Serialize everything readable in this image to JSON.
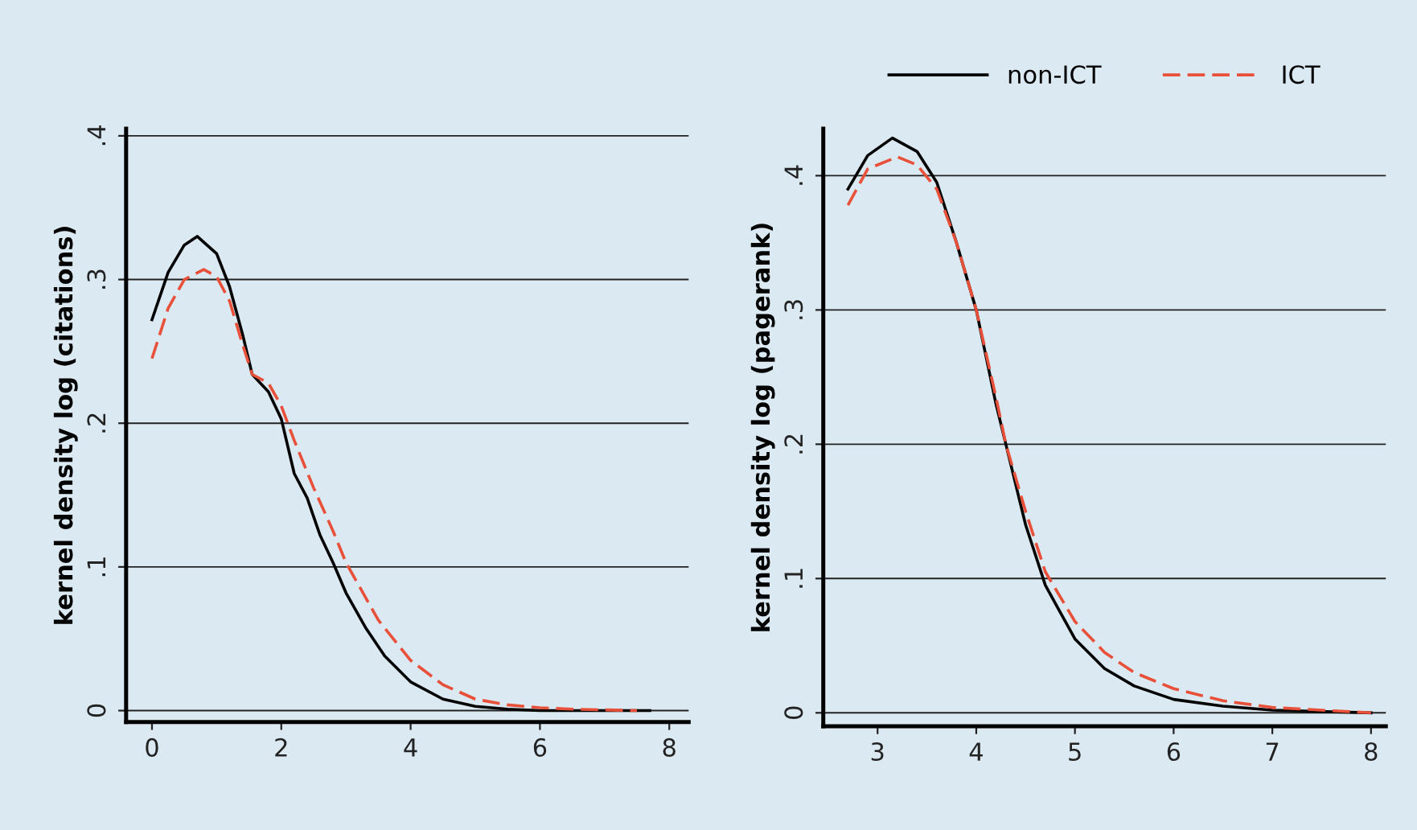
{
  "chart_data": [
    {
      "type": "line",
      "ylabel": "kernel density log (citations)",
      "xlim": [
        -0.4,
        8.3
      ],
      "ylim": [
        -0.008,
        0.405
      ],
      "xticks": [
        0,
        2,
        4,
        6,
        8
      ],
      "yticks": [
        {
          "value": 0,
          "label": "0"
        },
        {
          "value": 0.1,
          "label": ".1"
        },
        {
          "value": 0.2,
          "label": ".2"
        },
        {
          "value": 0.3,
          "label": ".3"
        },
        {
          "value": 0.4,
          "label": ".4"
        }
      ],
      "grid": "y",
      "legend": false,
      "series": [
        {
          "color": "#000000",
          "line_style": "solid",
          "x": [
            0,
            0.25,
            0.5,
            0.7,
            1.0,
            1.2,
            1.4,
            1.55,
            1.8,
            2.0,
            2.2,
            2.4,
            2.6,
            2.8,
            3.0,
            3.3,
            3.6,
            4.0,
            4.5,
            5.0,
            5.5,
            6.0,
            7.7
          ],
          "values": [
            0.272,
            0.305,
            0.324,
            0.33,
            0.318,
            0.295,
            0.262,
            0.234,
            0.222,
            0.203,
            0.165,
            0.148,
            0.122,
            0.103,
            0.082,
            0.058,
            0.038,
            0.02,
            0.008,
            0.003,
            0.001,
            0,
            0
          ]
        },
        {
          "color": "#e8503a",
          "line_style": "dashed",
          "x": [
            0,
            0.25,
            0.5,
            0.8,
            1.0,
            1.2,
            1.4,
            1.55,
            1.8,
            2.0,
            2.2,
            2.5,
            2.8,
            3.0,
            3.5,
            4.0,
            4.5,
            5.0,
            5.5,
            6.0,
            6.5,
            7.5
          ],
          "values": [
            0.245,
            0.28,
            0.3,
            0.307,
            0.302,
            0.285,
            0.255,
            0.234,
            0.228,
            0.212,
            0.188,
            0.155,
            0.125,
            0.103,
            0.063,
            0.035,
            0.018,
            0.008,
            0.004,
            0.002,
            0.001,
            0
          ]
        }
      ]
    },
    {
      "type": "line",
      "ylabel": "kernel density log (pagerank)",
      "xlim": [
        2.45,
        8.15
      ],
      "ylim": [
        -0.01,
        0.435
      ],
      "xticks": [
        3,
        4,
        5,
        6,
        7,
        8
      ],
      "yticks": [
        {
          "value": 0,
          "label": "0"
        },
        {
          "value": 0.1,
          "label": ".1"
        },
        {
          "value": 0.2,
          "label": ".2"
        },
        {
          "value": 0.3,
          "label": ".3"
        },
        {
          "value": 0.4,
          "label": ".4"
        }
      ],
      "grid": "y",
      "legend": "top",
      "series": [
        {
          "name": "non-ICT",
          "color": "#000000",
          "line_style": "solid",
          "x": [
            2.7,
            2.9,
            3.15,
            3.4,
            3.6,
            3.8,
            4.0,
            4.2,
            4.3,
            4.5,
            4.7,
            5.0,
            5.3,
            5.6,
            6.0,
            6.5,
            7.0,
            8.0
          ],
          "values": [
            0.39,
            0.415,
            0.428,
            0.418,
            0.395,
            0.35,
            0.3,
            0.23,
            0.2,
            0.14,
            0.095,
            0.055,
            0.033,
            0.02,
            0.01,
            0.005,
            0.002,
            0
          ]
        },
        {
          "name": "ICT",
          "color": "#e8503a",
          "line_style": "dashed",
          "x": [
            2.7,
            2.9,
            3.2,
            3.4,
            3.6,
            3.8,
            4.0,
            4.2,
            4.3,
            4.5,
            4.7,
            5.0,
            5.3,
            5.6,
            6.0,
            6.5,
            7.0,
            8.0
          ],
          "values": [
            0.378,
            0.405,
            0.414,
            0.408,
            0.39,
            0.35,
            0.3,
            0.235,
            0.2,
            0.15,
            0.105,
            0.068,
            0.045,
            0.03,
            0.018,
            0.009,
            0.004,
            0
          ]
        }
      ]
    }
  ]
}
